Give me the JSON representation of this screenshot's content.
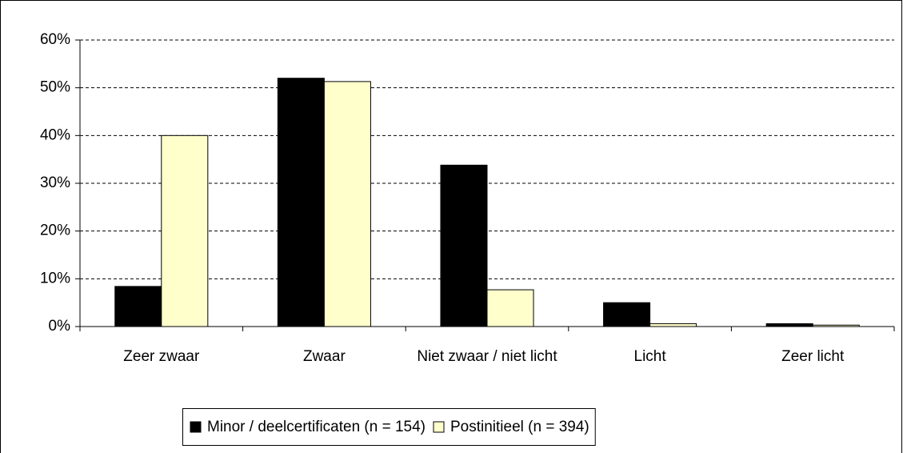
{
  "chart_data": {
    "type": "bar",
    "categories": [
      "Zeer zwaar",
      "Zwaar",
      "Niet zwaar / niet licht",
      "Licht",
      "Zeer licht"
    ],
    "series": [
      {
        "name": "Minor / deelcertificaten (n = 154)",
        "color": "#000000",
        "values": [
          8.4,
          52,
          33.8,
          5,
          0.6
        ]
      },
      {
        "name": "Postinitieel (n = 394)",
        "color": "#ffffcc",
        "values": [
          40,
          51.3,
          7.7,
          0.6,
          0.3
        ]
      }
    ],
    "ylim": [
      0,
      60
    ],
    "yticks": [
      {
        "value": 0,
        "label": "0%"
      },
      {
        "value": 10,
        "label": "10%"
      },
      {
        "value": 20,
        "label": "20%"
      },
      {
        "value": 30,
        "label": "30%"
      },
      {
        "value": 40,
        "label": "40%"
      },
      {
        "value": 50,
        "label": "50%"
      },
      {
        "value": 60,
        "label": "60%"
      }
    ],
    "grid": true,
    "legend": "bottom"
  }
}
